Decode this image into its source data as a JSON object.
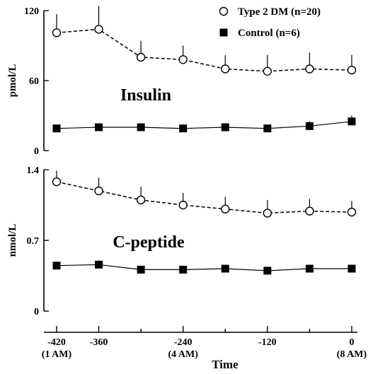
{
  "chart_data": [
    {
      "type": "line",
      "title": "Insulin",
      "ylabel": "pmol/L",
      "ylim": [
        0,
        120
      ],
      "yticks": [
        0,
        60,
        120
      ],
      "x": [
        -420,
        -360,
        -300,
        -240,
        -180,
        -120,
        -60,
        0
      ],
      "series": [
        {
          "name": "Type 2 DM (n=20)",
          "marker": "open-circle",
          "line": "dashed",
          "values": [
            101,
            104,
            80,
            78,
            70,
            68,
            70,
            69
          ],
          "error_plus": [
            16,
            20,
            14,
            12,
            12,
            14,
            14,
            13
          ]
        },
        {
          "name": "Control (n=6)",
          "marker": "filled-square",
          "line": "solid",
          "values": [
            19,
            20,
            20,
            19,
            20,
            19,
            21,
            25
          ],
          "error_plus": [
            0,
            0,
            0,
            0,
            0,
            0,
            4,
            5
          ]
        }
      ]
    },
    {
      "type": "line",
      "title": "C-peptide",
      "ylabel": "nmol/L",
      "ylim": [
        0,
        1.4
      ],
      "yticks": [
        0,
        0.7,
        1.4
      ],
      "x": [
        -420,
        -360,
        -300,
        -240,
        -180,
        -120,
        -60,
        0
      ],
      "series": [
        {
          "name": "Type 2 DM (n=20)",
          "marker": "open-circle",
          "line": "dashed",
          "values": [
            1.28,
            1.19,
            1.1,
            1.05,
            1.01,
            0.97,
            0.99,
            0.98
          ],
          "error_plus": [
            0.11,
            0.13,
            0.13,
            0.12,
            0.12,
            0.13,
            0.12,
            0.11
          ]
        },
        {
          "name": "Control (n=6)",
          "marker": "filled-square",
          "line": "solid",
          "values": [
            0.45,
            0.46,
            0.41,
            0.41,
            0.42,
            0.4,
            0.42,
            0.42
          ],
          "error_plus": [
            0.04,
            0.04,
            0,
            0,
            0,
            0,
            0.04,
            0
          ]
        }
      ]
    }
  ],
  "x_axis": {
    "label": "Time",
    "xlim": [
      -440,
      10
    ],
    "ticks": [
      -420,
      -360,
      -240,
      -120,
      0
    ],
    "minor_ticks": [
      -300,
      -180,
      -60
    ],
    "tick_labels": [
      "-420",
      "-360",
      "-240",
      "-120",
      "0"
    ],
    "tick_sublabels": [
      "(1 AM)",
      "",
      "(4 AM)",
      "",
      "(8 AM)"
    ]
  },
  "legend": {
    "placement": "top-right",
    "entries": [
      {
        "label": "Type 2 DM (n=20)",
        "marker": "open-circle"
      },
      {
        "label": "Control (n=6)",
        "marker": "filled-square"
      }
    ]
  }
}
